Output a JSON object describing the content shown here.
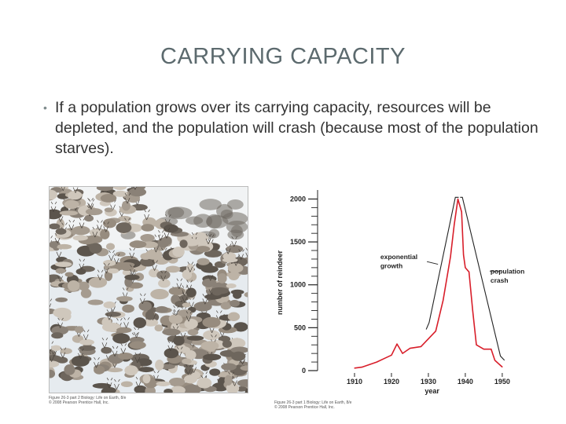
{
  "slide": {
    "title": "CARRYING CAPACITY",
    "bullet": "If a population grows over its carrying capacity, resources will be depleted, and the population will crash (because most of the population starves)."
  },
  "photo": {
    "caption_line1": "Figure 26-3 part 2 Biology: Life on Earth, 8/e",
    "caption_line2": "© 2008 Pearson Prentice Hall, Inc."
  },
  "chart_caption": {
    "line1": "Figure 26-3 part 1 Biology: Life on Earth, 8/e",
    "line2": "© 2008 Pearson Prentice Hall, Inc."
  },
  "chart_data": {
    "type": "line",
    "title": "",
    "xlabel": "year",
    "ylabel": "number of reindeer",
    "xlim": [
      1900,
      1953
    ],
    "ylim": [
      0,
      2050
    ],
    "x_ticks": [
      1910,
      1920,
      1930,
      1940,
      1950
    ],
    "y_ticks": [
      0,
      500,
      1000,
      1500,
      2000
    ],
    "grid": false,
    "series": [
      {
        "name": "",
        "color": "#d81e2a",
        "points": [
          [
            1910,
            29
          ],
          [
            1912,
            40
          ],
          [
            1914,
            70
          ],
          [
            1916,
            100
          ],
          [
            1918,
            140
          ],
          [
            1920,
            180
          ],
          [
            1921.5,
            310
          ],
          [
            1923,
            200
          ],
          [
            1925,
            260
          ],
          [
            1928,
            280
          ],
          [
            1930,
            370
          ],
          [
            1932,
            460
          ],
          [
            1934,
            820
          ],
          [
            1936,
            1330
          ],
          [
            1937,
            1700
          ],
          [
            1938,
            2000
          ],
          [
            1939,
            1850
          ],
          [
            1939.5,
            1350
          ],
          [
            1940,
            1200
          ],
          [
            1941,
            1150
          ],
          [
            1942,
            700
          ],
          [
            1943,
            300
          ],
          [
            1945,
            250
          ],
          [
            1947,
            250
          ],
          [
            1948,
            120
          ],
          [
            1950,
            42
          ]
        ]
      }
    ],
    "annotations": [
      {
        "text": "exponential",
        "text2": "growth",
        "anchor": [
          1932,
          1300
        ]
      },
      {
        "text": "population",
        "text2": "crash",
        "anchor": [
          1951,
          1150
        ]
      }
    ]
  }
}
